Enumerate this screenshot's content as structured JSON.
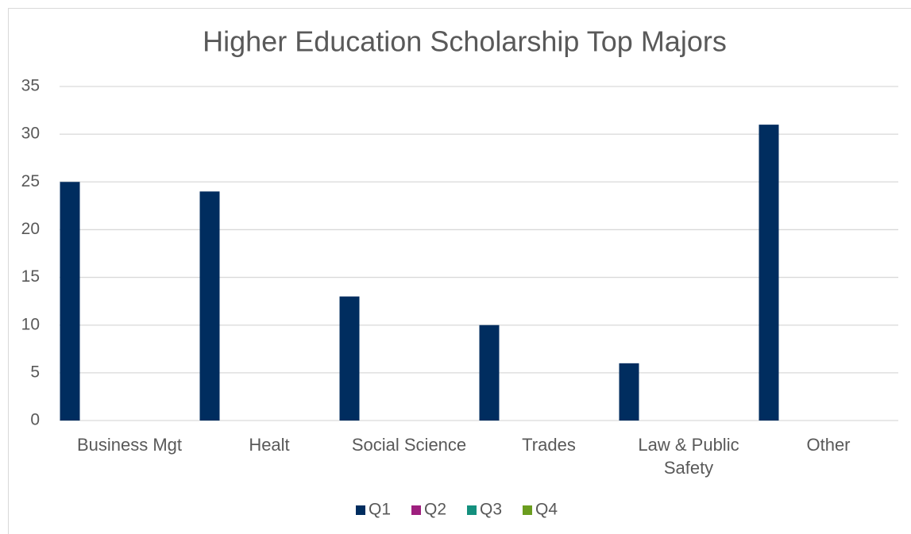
{
  "chart_data": {
    "type": "bar",
    "title": "Higher Education Scholarship Top Majors",
    "categories": [
      "Business Mgt",
      "Healt",
      "Social Science",
      "Trades",
      "Law & Public Safety",
      "Other"
    ],
    "series": [
      {
        "name": "Q1",
        "color": "#002d5f",
        "values": [
          25,
          24,
          13,
          10,
          6,
          31
        ]
      },
      {
        "name": "Q2",
        "color": "#9e1f7e",
        "values": [
          null,
          null,
          null,
          null,
          null,
          null
        ]
      },
      {
        "name": "Q3",
        "color": "#14907e",
        "values": [
          null,
          null,
          null,
          null,
          null,
          null
        ]
      },
      {
        "name": "Q4",
        "color": "#6b9d1f",
        "values": [
          null,
          null,
          null,
          null,
          null,
          null
        ]
      }
    ],
    "ylim": [
      0,
      35
    ],
    "yticks": [
      0,
      5,
      10,
      15,
      20,
      25,
      30,
      35
    ],
    "grid": true,
    "legend": "bottom"
  }
}
